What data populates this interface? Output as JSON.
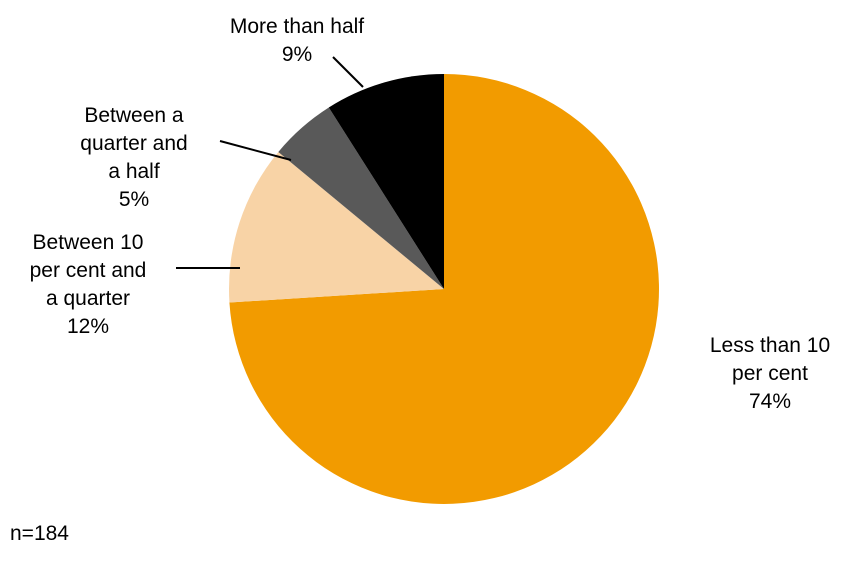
{
  "chart_data": {
    "type": "pie",
    "slices": [
      {
        "label_lines": [
          "Less than 10",
          "per cent"
        ],
        "value": 74,
        "value_label": "74%",
        "color": "#F29B00"
      },
      {
        "label_lines": [
          "Between 10",
          "per cent and",
          "a quarter"
        ],
        "value": 12,
        "value_label": "12%",
        "color": "#F8D3A6"
      },
      {
        "label_lines": [
          "Between a",
          "quarter and",
          "a half"
        ],
        "value": 5,
        "value_label": "5%",
        "color": "#595959"
      },
      {
        "label_lines": [
          "More than half"
        ],
        "value": 9,
        "value_label": "9%",
        "color": "#000000"
      }
    ],
    "start": "12 o'clock",
    "direction": "clockwise"
  },
  "note": "n=184"
}
